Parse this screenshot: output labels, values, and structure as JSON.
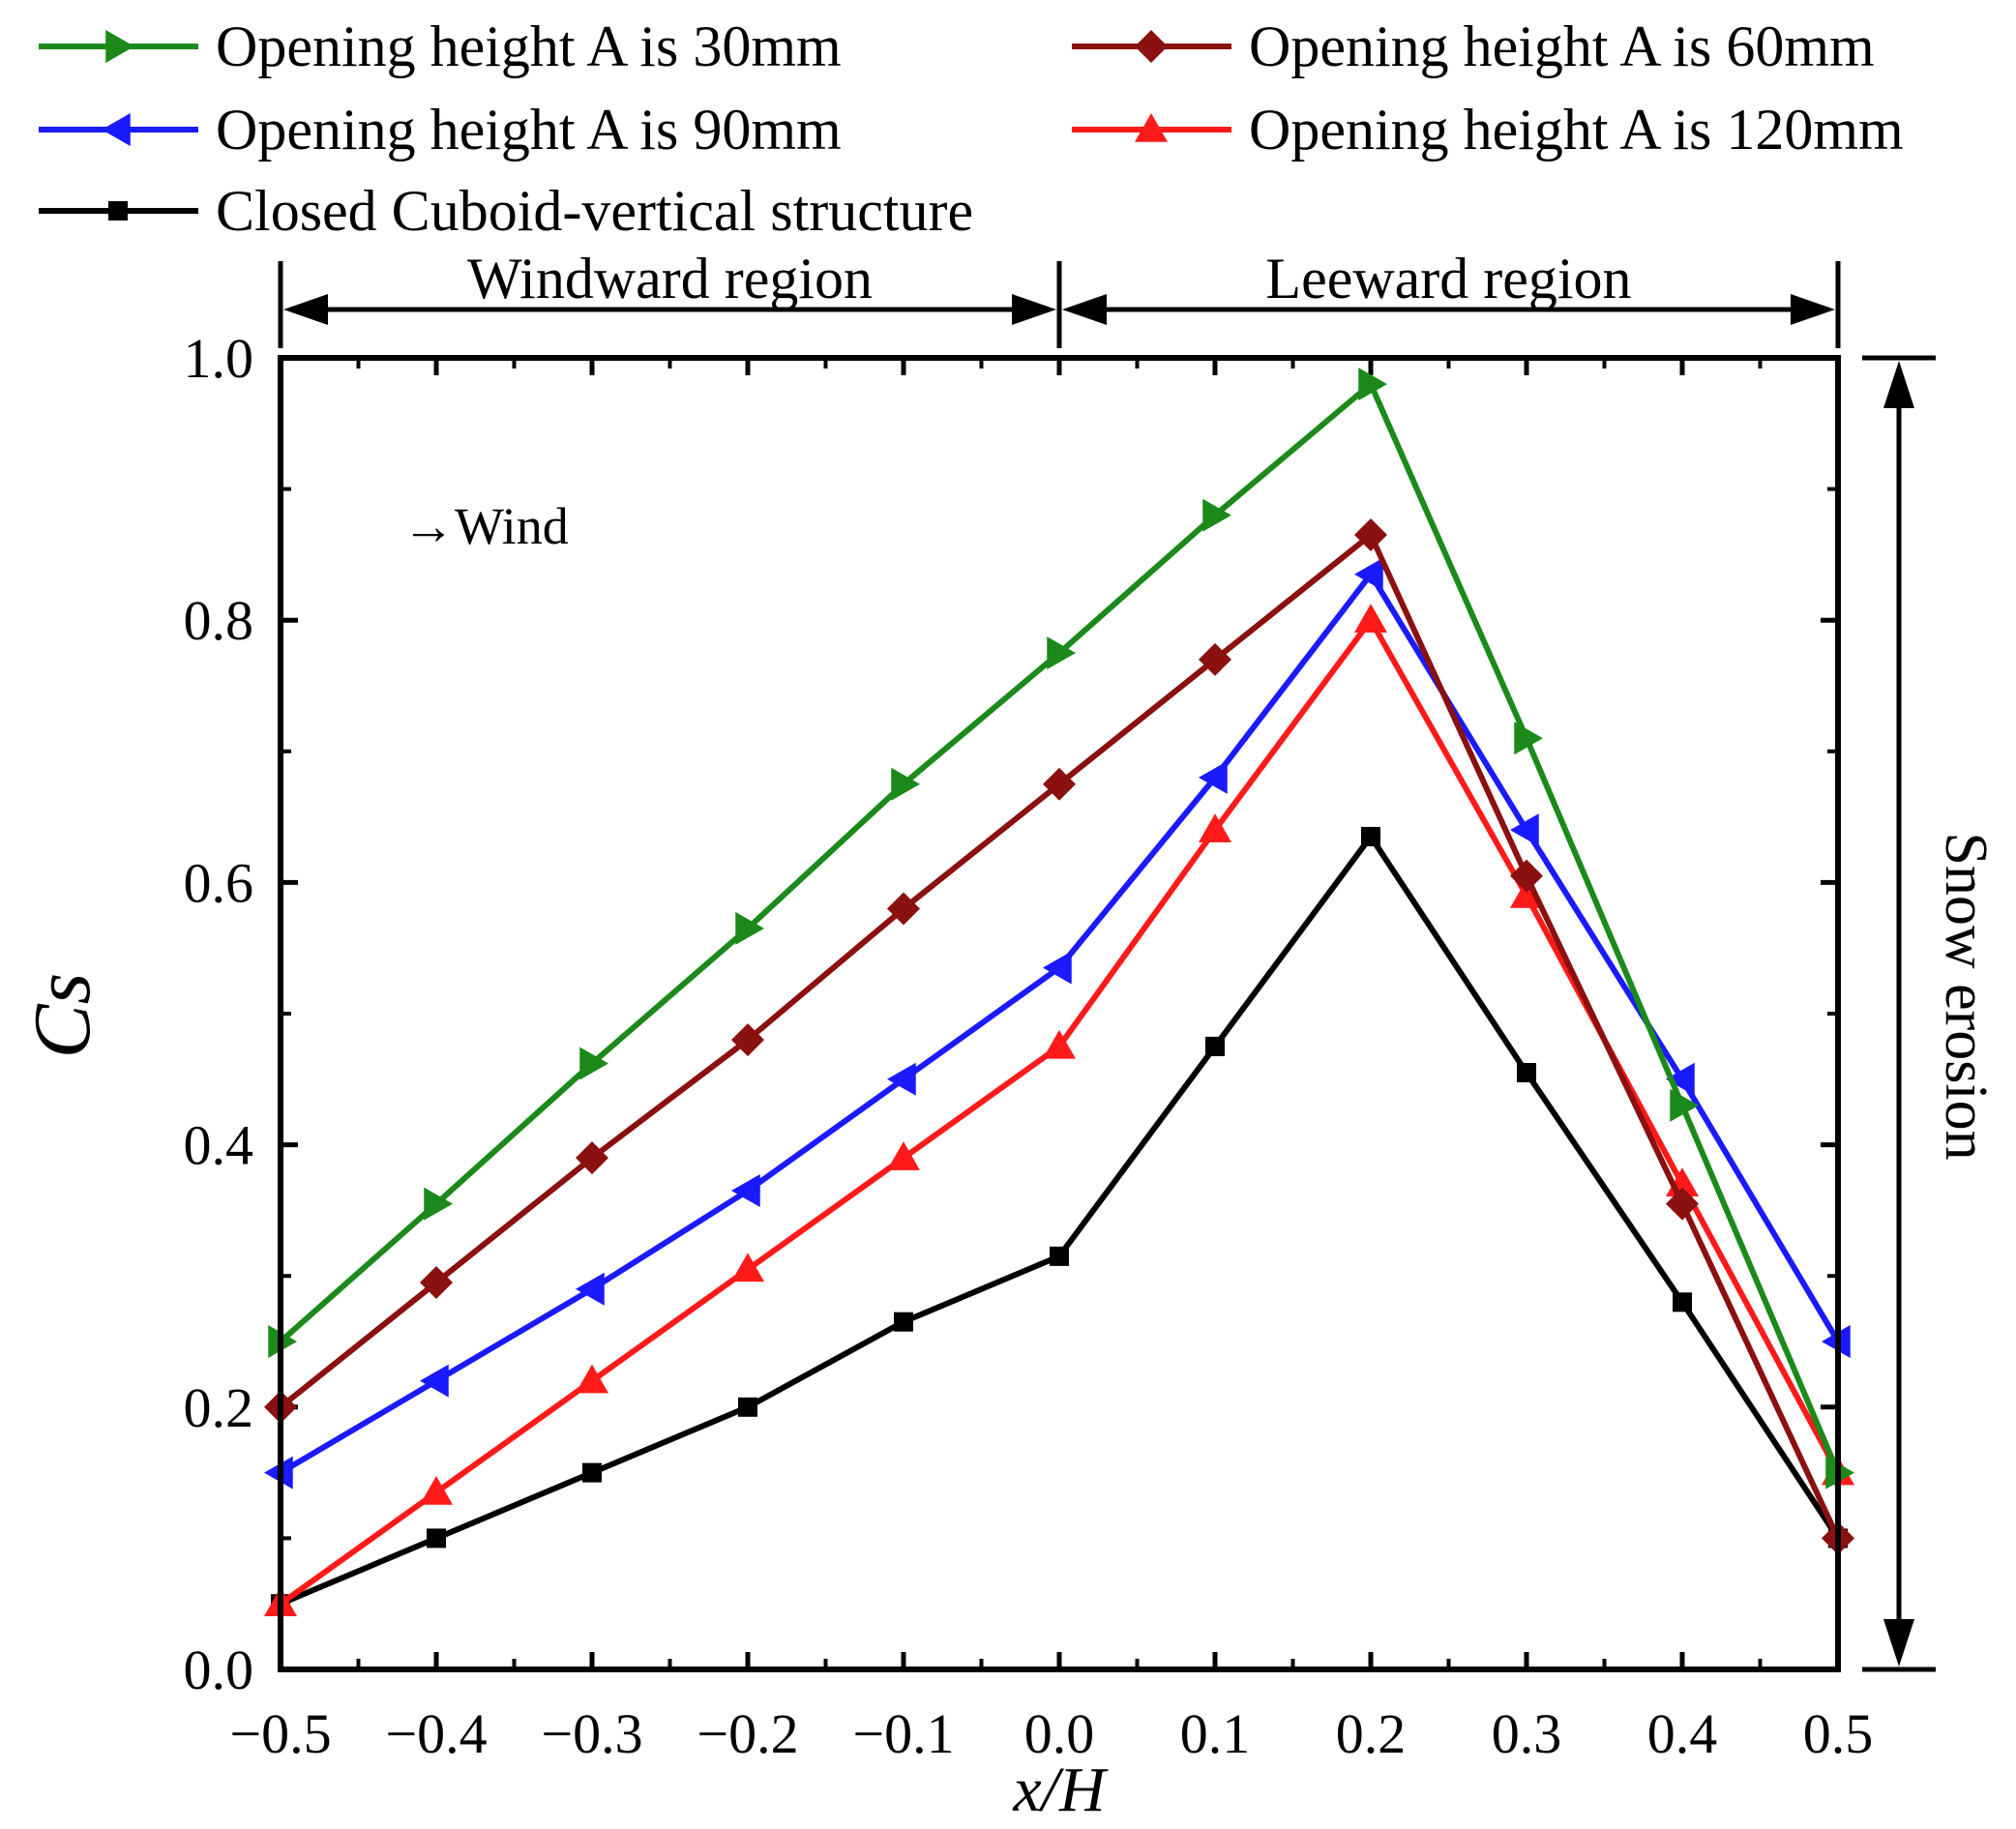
{
  "chart_data": {
    "type": "line",
    "xlabel": "x/H",
    "ylabel": "Cs",
    "xlim": [
      -0.5,
      0.5
    ],
    "ylim": [
      0.0,
      1.0
    ],
    "x": [
      -0.5,
      -0.4,
      -0.3,
      -0.2,
      -0.1,
      0.0,
      0.1,
      0.2,
      0.3,
      0.4,
      0.5
    ],
    "x_tick_labels": [
      "−0.5",
      "−0.4",
      "−0.3",
      "−0.2",
      "−0.1",
      "0.0",
      "0.1",
      "0.2",
      "0.3",
      "0.4",
      "0.5"
    ],
    "y_ticks": [
      0.0,
      0.2,
      0.4,
      0.6,
      0.8,
      1.0
    ],
    "y_tick_labels": [
      "0.0",
      "0.2",
      "0.4",
      "0.6",
      "0.8",
      "1.0"
    ],
    "series": [
      {
        "name": "Opening height A is 30mm",
        "color": "#1b8a1b",
        "marker": "triangle-right",
        "values": [
          0.25,
          0.355,
          0.462,
          0.565,
          0.675,
          0.775,
          0.88,
          0.98,
          0.71,
          0.43,
          0.15
        ]
      },
      {
        "name": "Opening height A is 60mm",
        "color": "#8b1010",
        "marker": "diamond",
        "values": [
          0.2,
          0.295,
          0.39,
          0.48,
          0.58,
          0.675,
          0.77,
          0.865,
          0.605,
          0.355,
          0.1
        ]
      },
      {
        "name": "Opening height A is 90mm",
        "color": "#1a1aff",
        "marker": "triangle-left",
        "values": [
          0.15,
          0.22,
          0.29,
          0.365,
          0.45,
          0.535,
          0.68,
          0.835,
          0.64,
          0.45,
          0.25
        ]
      },
      {
        "name": "Opening height A is 120mm",
        "color": "#ff1a1a",
        "marker": "triangle-up",
        "values": [
          0.05,
          0.135,
          0.22,
          0.305,
          0.39,
          0.475,
          0.64,
          0.8,
          0.59,
          0.37,
          0.15
        ]
      },
      {
        "name": "Closed Cuboid-vertical structure",
        "color": "#000000",
        "marker": "square",
        "values": [
          0.05,
          0.1,
          0.15,
          0.2,
          0.265,
          0.315,
          0.475,
          0.635,
          0.455,
          0.28,
          0.1
        ]
      }
    ],
    "annotations": {
      "windward": "Windward region",
      "leeward": "Leeward region",
      "wind": "→Wind",
      "erosion": "Snow erosion"
    },
    "legend_position": "top"
  }
}
